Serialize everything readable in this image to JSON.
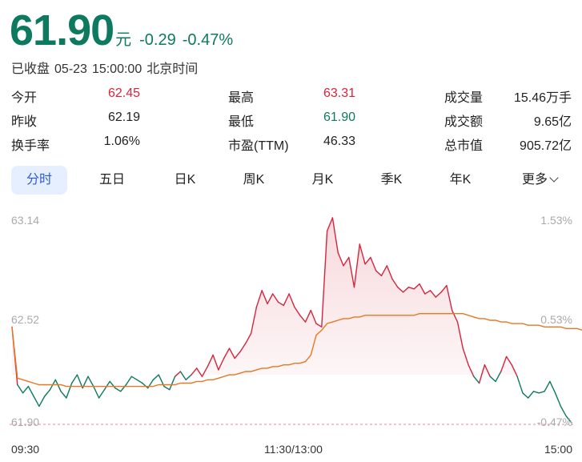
{
  "quote": {
    "price": "61.90",
    "unit": "元",
    "change": "-0.29",
    "change_pct": "-0.47%",
    "status": "已收盘",
    "date": "05-23",
    "time": "15:00:00",
    "timezone": "北京时间"
  },
  "stats": [
    [
      {
        "label": "今开",
        "value": "62.45",
        "color": "#d6243c"
      },
      {
        "label": "最高",
        "value": "63.31",
        "color": "#d6243c"
      },
      {
        "label": "成交量",
        "value": "15.46万手",
        "color": "#222222"
      }
    ],
    [
      {
        "label": "昨收",
        "value": "62.19",
        "color": "#222222"
      },
      {
        "label": "最低",
        "value": "61.90",
        "color": "#0d7a5f"
      },
      {
        "label": "成交额",
        "value": "9.65亿",
        "color": "#222222"
      }
    ],
    [
      {
        "label": "换手率",
        "value": "1.06%",
        "color": "#222222"
      },
      {
        "label": "市盈(TTM)",
        "value": "46.33",
        "color": "#222222"
      },
      {
        "label": "总市值",
        "value": "905.72亿",
        "color": "#222222"
      }
    ]
  ],
  "tabs": [
    {
      "label": "分时",
      "active": true
    },
    {
      "label": "五日",
      "active": false
    },
    {
      "label": "日K",
      "active": false
    },
    {
      "label": "周K",
      "active": false
    },
    {
      "label": "月K",
      "active": false
    },
    {
      "label": "季K",
      "active": false
    },
    {
      "label": "年K",
      "active": false
    },
    {
      "label": "更多",
      "active": false
    }
  ],
  "chart_data": {
    "type": "line",
    "y_left_labels": [
      "63.14",
      "62.52",
      "61.90"
    ],
    "y_right_labels": [
      "1.53%",
      "0.53%",
      "-0.47%"
    ],
    "x_labels": [
      "09:30",
      "11:30/13:00",
      "15:00"
    ],
    "ylim": [
      61.9,
      63.14
    ],
    "prev_close": 62.19,
    "colors": {
      "up": "#d6243c",
      "down": "#0d7a5f",
      "avg": "#e87722",
      "fill": "#f7d9dc"
    },
    "price_series": [
      62.48,
      62.13,
      62.08,
      62.12,
      62.06,
      62.0,
      62.06,
      62.1,
      62.16,
      62.09,
      62.05,
      62.14,
      62.19,
      62.11,
      62.18,
      62.12,
      62.05,
      62.1,
      62.15,
      62.11,
      62.09,
      62.13,
      62.18,
      62.16,
      62.14,
      62.11,
      62.16,
      62.19,
      62.12,
      62.1,
      62.18,
      62.21,
      62.16,
      62.19,
      62.23,
      62.18,
      62.24,
      62.31,
      62.22,
      62.29,
      62.35,
      62.29,
      62.33,
      62.38,
      62.44,
      62.6,
      62.7,
      62.62,
      62.68,
      62.63,
      62.61,
      62.68,
      62.6,
      62.55,
      62.51,
      62.58,
      62.5,
      62.48,
      63.06,
      63.14,
      62.93,
      62.85,
      62.9,
      62.72,
      62.98,
      62.86,
      62.9,
      62.82,
      62.79,
      62.85,
      62.77,
      62.72,
      62.69,
      62.72,
      62.71,
      62.74,
      62.68,
      62.7,
      62.66,
      62.69,
      62.73,
      62.58,
      62.51,
      62.35,
      62.25,
      62.18,
      62.14,
      62.25,
      62.18,
      62.15,
      62.21,
      62.3,
      62.25,
      62.18,
      62.08,
      62.05,
      62.09,
      62.08,
      62.09,
      62.15,
      62.08,
      62.0,
      61.94,
      61.9
    ],
    "avg_series": [
      62.48,
      62.17,
      62.16,
      62.15,
      62.14,
      62.13,
      62.13,
      62.13,
      62.13,
      62.13,
      62.12,
      62.12,
      62.12,
      62.12,
      62.12,
      62.12,
      62.12,
      62.12,
      62.12,
      62.12,
      62.12,
      62.12,
      62.12,
      62.12,
      62.12,
      62.12,
      62.12,
      62.13,
      62.13,
      62.13,
      62.13,
      62.14,
      62.14,
      62.14,
      62.15,
      62.15,
      62.16,
      62.16,
      62.17,
      62.18,
      62.19,
      62.19,
      62.2,
      62.21,
      62.21,
      62.22,
      62.23,
      62.23,
      62.24,
      62.24,
      62.25,
      62.25,
      62.26,
      62.26,
      62.27,
      62.31,
      62.43,
      62.46,
      62.5,
      62.51,
      62.52,
      62.53,
      62.53,
      62.54,
      62.54,
      62.55,
      62.55,
      62.55,
      62.55,
      62.55,
      62.55,
      62.55,
      62.55,
      62.55,
      62.55,
      62.56,
      62.56,
      62.56,
      62.56,
      62.56,
      62.56,
      62.56,
      62.56,
      62.56,
      62.55,
      62.54,
      62.53,
      62.53,
      62.52,
      62.52,
      62.51,
      62.51,
      62.5,
      62.5,
      62.5,
      62.49,
      62.49,
      62.49,
      62.48,
      62.48,
      62.48,
      62.48,
      62.47,
      62.47,
      62.47,
      62.46
    ]
  }
}
